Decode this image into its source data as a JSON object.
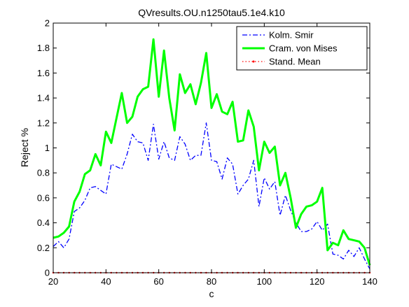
{
  "chart_data": {
    "type": "line",
    "title": "QVresults.OU.n1250tau5.1e4.k10",
    "xlabel": "c",
    "ylabel": "Reject %",
    "xlim": [
      20,
      140
    ],
    "ylim": [
      0,
      2
    ],
    "xticks": [
      20,
      40,
      60,
      80,
      100,
      120,
      140
    ],
    "yticks": [
      0,
      0.2,
      0.4,
      0.6,
      0.8,
      1,
      1.2,
      1.4,
      1.6,
      1.8,
      2
    ],
    "grid": false,
    "legend_position": "top-right",
    "x": [
      20,
      22,
      24,
      26,
      28,
      30,
      32,
      34,
      36,
      38,
      40,
      42,
      44,
      46,
      48,
      50,
      52,
      54,
      56,
      58,
      60,
      62,
      64,
      66,
      68,
      70,
      72,
      74,
      76,
      78,
      80,
      82,
      84,
      86,
      88,
      90,
      92,
      94,
      96,
      98,
      100,
      102,
      104,
      106,
      108,
      110,
      112,
      114,
      116,
      118,
      120,
      122,
      124,
      126,
      128,
      130,
      132,
      134,
      136,
      138,
      140
    ],
    "series": [
      {
        "name": "Kolm. Smir",
        "color": "#0000ff",
        "style": "dash-dot",
        "values": [
          0.21,
          0.25,
          0.2,
          0.27,
          0.49,
          0.52,
          0.58,
          0.68,
          0.69,
          0.66,
          0.63,
          0.87,
          0.85,
          0.83,
          0.95,
          1.11,
          1.05,
          1.04,
          0.9,
          1.19,
          0.91,
          1.05,
          0.92,
          0.9,
          1.09,
          1.03,
          0.9,
          0.94,
          0.94,
          1.2,
          0.9,
          0.89,
          0.75,
          0.92,
          0.87,
          0.63,
          0.7,
          0.75,
          0.9,
          0.53,
          0.76,
          0.67,
          0.73,
          0.46,
          0.62,
          0.5,
          0.4,
          0.33,
          0.33,
          0.35,
          0.41,
          0.34,
          0.39,
          0.15,
          0.14,
          0.11,
          0.18,
          0.13,
          0.2,
          0.11,
          0.03
        ]
      },
      {
        "name": "Cram. von Mises",
        "color": "#00ff00",
        "style": "solid",
        "values": [
          0.28,
          0.29,
          0.32,
          0.37,
          0.57,
          0.65,
          0.79,
          0.82,
          0.95,
          0.86,
          1.13,
          1.04,
          1.24,
          1.44,
          1.2,
          1.25,
          1.41,
          1.47,
          1.49,
          1.87,
          1.41,
          1.78,
          1.4,
          1.14,
          1.59,
          1.44,
          1.51,
          1.35,
          1.52,
          1.76,
          1.32,
          1.43,
          1.29,
          1.27,
          1.37,
          1.05,
          1.06,
          1.3,
          1.17,
          0.82,
          1.05,
          0.96,
          1.01,
          0.7,
          0.8,
          0.6,
          0.36,
          0.47,
          0.53,
          0.54,
          0.57,
          0.68,
          0.18,
          0.24,
          0.22,
          0.34,
          0.27,
          0.26,
          0.25,
          0.2,
          0.06
        ]
      },
      {
        "name": "Stand. Mean",
        "color": "#ff0000",
        "style": "dotted",
        "values": [
          0,
          0,
          0,
          0,
          0,
          0,
          0,
          0,
          0,
          0,
          0,
          0,
          0,
          0,
          0,
          0,
          0,
          0,
          0,
          0,
          0,
          0,
          0,
          0,
          0,
          0,
          0,
          0,
          0,
          0,
          0,
          0,
          0,
          0,
          0,
          0,
          0,
          0,
          0,
          0,
          0,
          0,
          0,
          0,
          0,
          0,
          0,
          0,
          0,
          0,
          0,
          0,
          0,
          0,
          0,
          0,
          0,
          0,
          0,
          0,
          0
        ]
      }
    ]
  }
}
